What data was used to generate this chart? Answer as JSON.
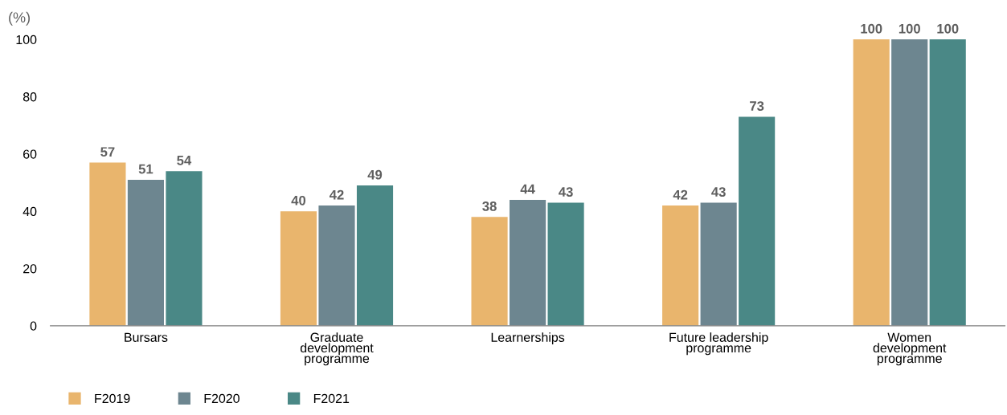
{
  "chart_data": {
    "type": "bar",
    "ylabel": "(%)",
    "categories": [
      "Bursars",
      "Graduate\ndevelopment\nprogramme",
      "Learnerships",
      "Future leadership\nprogramme",
      "Women\ndevelopment\nprogramme"
    ],
    "series": [
      {
        "name": "F2019",
        "color": "#e9b56d",
        "values": [
          57,
          40,
          38,
          42,
          100
        ]
      },
      {
        "name": "F2020",
        "color": "#6d8690",
        "values": [
          51,
          42,
          44,
          43,
          100
        ]
      },
      {
        "name": "F2021",
        "color": "#4a8886",
        "values": [
          54,
          49,
          43,
          73,
          100
        ]
      }
    ],
    "ylim": [
      0,
      100
    ],
    "yticks": [
      0,
      20,
      40,
      60,
      80,
      100
    ],
    "grid": false,
    "legend": "bottom left",
    "data_labels": true
  }
}
